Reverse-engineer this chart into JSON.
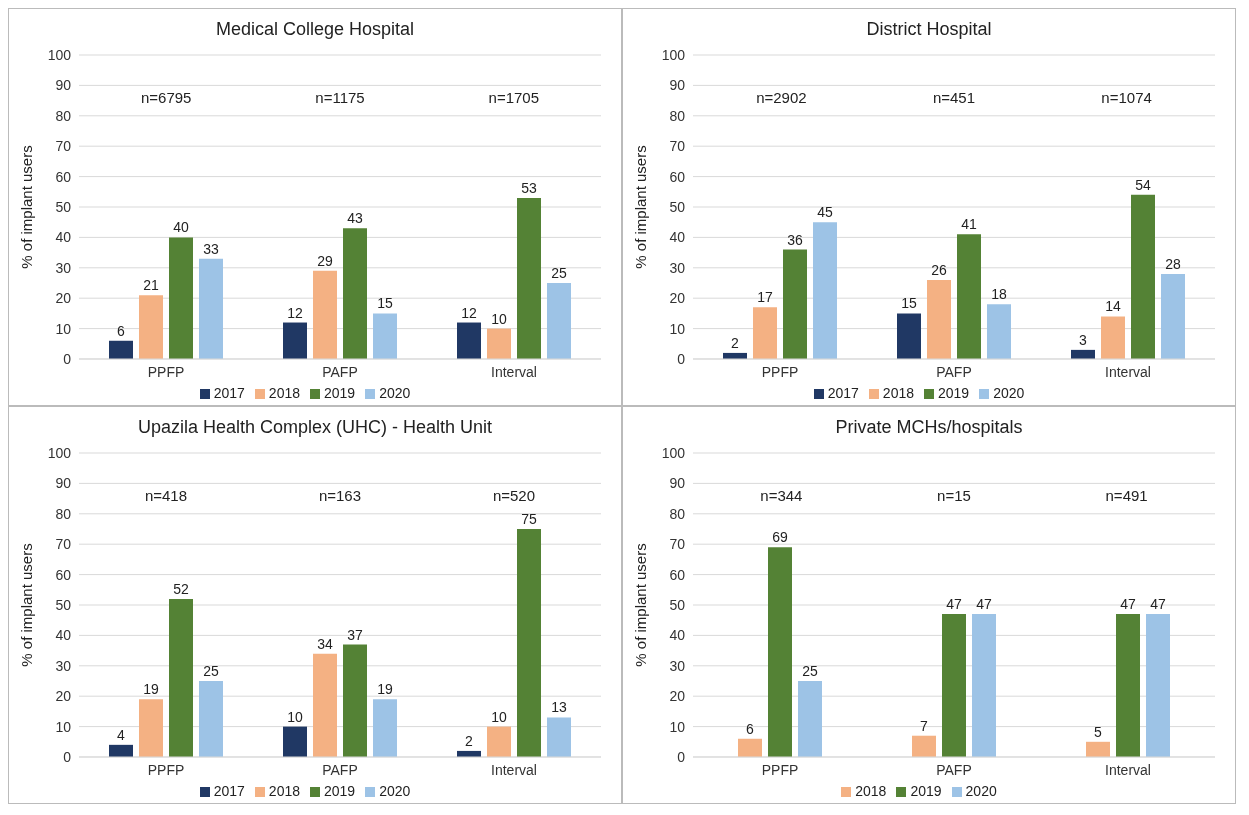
{
  "chart_data": [
    {
      "type": "bar",
      "title": "Medical College Hospital",
      "ylabel": "% of implant users",
      "categories": [
        "PPFP",
        "PAFP",
        "Interval"
      ],
      "series": [
        {
          "name": "2017",
          "color": "#203864",
          "values": [
            6,
            12,
            12
          ]
        },
        {
          "name": "2018",
          "color": "#f4b183",
          "values": [
            21,
            29,
            10
          ]
        },
        {
          "name": "2019",
          "color": "#548235",
          "values": [
            40,
            43,
            53
          ]
        },
        {
          "name": "2020",
          "color": "#9dc3e6",
          "values": [
            33,
            15,
            25
          ]
        }
      ],
      "ylim": [
        0,
        100
      ],
      "yticks": [
        0,
        10,
        20,
        30,
        40,
        50,
        60,
        70,
        80,
        90,
        100
      ],
      "grid": "y",
      "legend": "bottom",
      "data_labels": true,
      "annotations": [
        "n=6795",
        "n=1175",
        "n=1705"
      ]
    },
    {
      "type": "bar",
      "title": "District Hospital",
      "ylabel": "% of implant users",
      "categories": [
        "PPFP",
        "PAFP",
        "Interval"
      ],
      "series": [
        {
          "name": "2017",
          "color": "#203864",
          "values": [
            2,
            15,
            3
          ]
        },
        {
          "name": "2018",
          "color": "#f4b183",
          "values": [
            17,
            26,
            14
          ]
        },
        {
          "name": "2019",
          "color": "#548235",
          "values": [
            36,
            41,
            54
          ]
        },
        {
          "name": "2020",
          "color": "#9dc3e6",
          "values": [
            45,
            18,
            28
          ]
        }
      ],
      "ylim": [
        0,
        100
      ],
      "yticks": [
        0,
        10,
        20,
        30,
        40,
        50,
        60,
        70,
        80,
        90,
        100
      ],
      "grid": "y",
      "legend": "bottom",
      "data_labels": true,
      "annotations": [
        "n=2902",
        "n=451",
        "n=1074"
      ]
    },
    {
      "type": "bar",
      "title": "Upazila Health Complex (UHC) - Health Unit",
      "ylabel": "% of implant users",
      "categories": [
        "PPFP",
        "PAFP",
        "Interval"
      ],
      "series": [
        {
          "name": "2017",
          "color": "#203864",
          "values": [
            4,
            10,
            2
          ]
        },
        {
          "name": "2018",
          "color": "#f4b183",
          "values": [
            19,
            34,
            10
          ]
        },
        {
          "name": "2019",
          "color": "#548235",
          "values": [
            52,
            37,
            75
          ]
        },
        {
          "name": "2020",
          "color": "#9dc3e6",
          "values": [
            25,
            19,
            13
          ]
        }
      ],
      "ylim": [
        0,
        100
      ],
      "yticks": [
        0,
        10,
        20,
        30,
        40,
        50,
        60,
        70,
        80,
        90,
        100
      ],
      "grid": "y",
      "legend": "bottom",
      "data_labels": true,
      "annotations": [
        "n=418",
        "n=163",
        "n=520"
      ]
    },
    {
      "type": "bar",
      "title": "Private MCHs/hospitals",
      "ylabel": "% of implant users",
      "categories": [
        "PPFP",
        "PAFP",
        "Interval"
      ],
      "series": [
        {
          "name": "2018",
          "color": "#f4b183",
          "values": [
            6,
            7,
            5
          ]
        },
        {
          "name": "2019",
          "color": "#548235",
          "values": [
            69,
            47,
            47
          ]
        },
        {
          "name": "2020",
          "color": "#9dc3e6",
          "values": [
            25,
            47,
            47
          ]
        }
      ],
      "ylim": [
        0,
        100
      ],
      "yticks": [
        0,
        10,
        20,
        30,
        40,
        50,
        60,
        70,
        80,
        90,
        100
      ],
      "grid": "y",
      "legend": "bottom",
      "data_labels": true,
      "annotations": [
        "n=344",
        "n=15",
        "n=491"
      ]
    }
  ]
}
